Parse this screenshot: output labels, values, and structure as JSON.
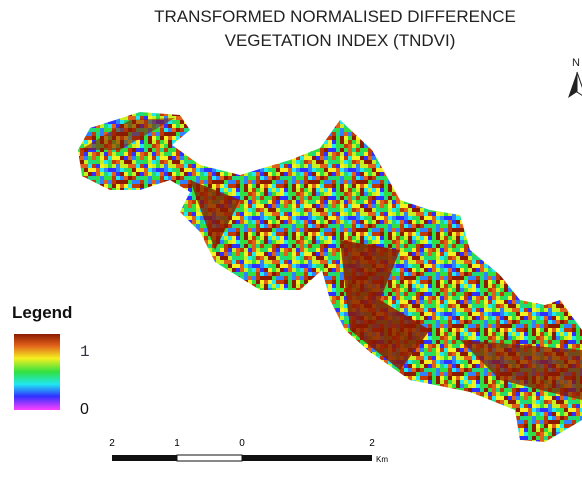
{
  "title": {
    "line1": "TRANSFORMED NORMALISED DIFFERENCE",
    "line2": "VEGETATION INDEX (TNDVI)"
  },
  "north_arrow": {
    "label": "N"
  },
  "legend": {
    "title": "Legend",
    "max_label": "1",
    "min_label": "0"
  },
  "scale_bar": {
    "labels": [
      "2",
      "1",
      "0",
      "2"
    ],
    "unit": "Km"
  }
}
